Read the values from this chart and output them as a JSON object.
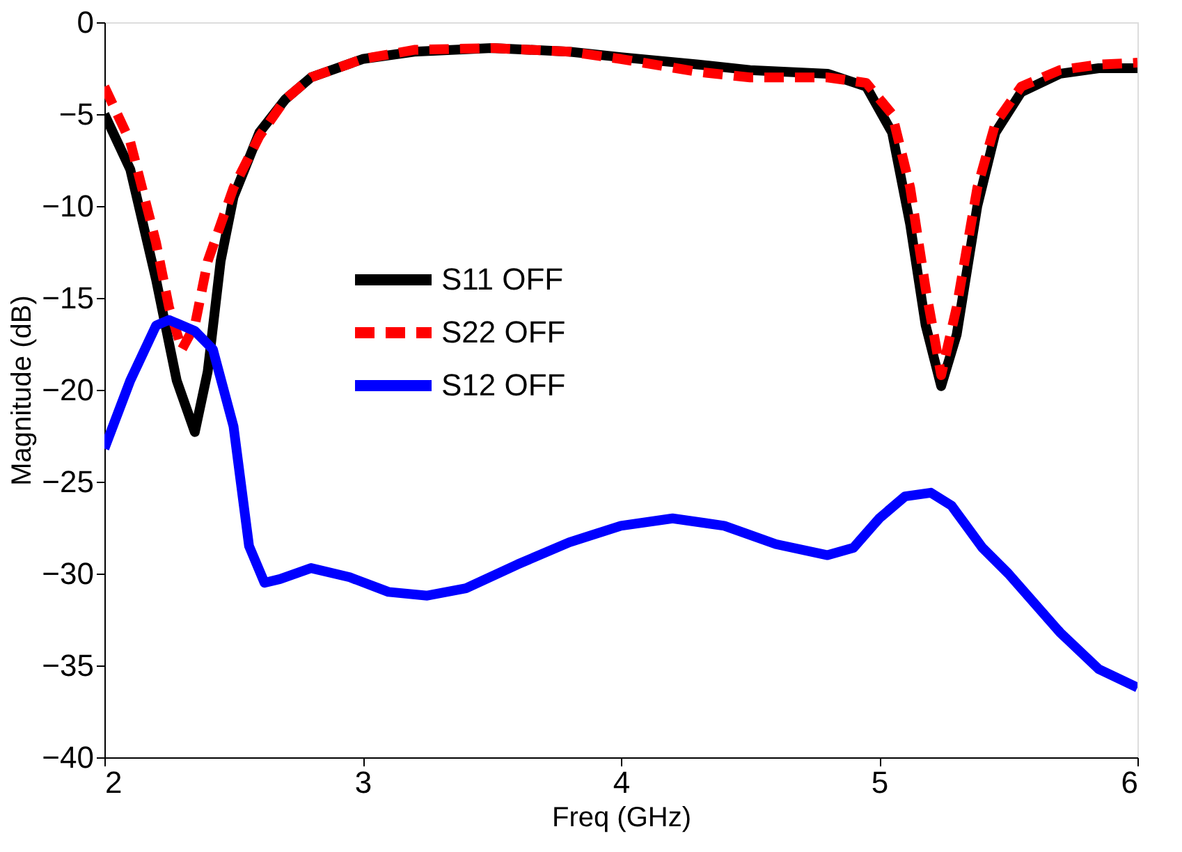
{
  "chart_data": {
    "type": "line",
    "xlabel": "Freq (GHz)",
    "ylabel": "Magnitude (dB)",
    "xlim": [
      2,
      6
    ],
    "xticks": [
      2,
      3,
      4,
      5,
      6
    ],
    "ylim": [
      -40,
      0
    ],
    "yticks": [
      -40,
      -35,
      -30,
      -25,
      -20,
      -15,
      -10,
      -5,
      0
    ],
    "grid": false,
    "legend": "left",
    "marker": "none",
    "series": [
      {
        "name": "S11 OFF",
        "color": "#000000",
        "line_style": "solid",
        "x": [
          2.0,
          2.1,
          2.2,
          2.28,
          2.35,
          2.4,
          2.45,
          2.5,
          2.6,
          2.7,
          2.8,
          3.0,
          3.2,
          3.5,
          3.8,
          4.0,
          4.3,
          4.5,
          4.8,
          4.95,
          5.05,
          5.12,
          5.18,
          5.24,
          5.3,
          5.38,
          5.45,
          5.55,
          5.7,
          5.85,
          6.0
        ],
        "values": [
          -5,
          -8,
          -14,
          -19.5,
          -22.3,
          -19,
          -13,
          -9.5,
          -6,
          -4.2,
          -3,
          -2,
          -1.6,
          -1.4,
          -1.6,
          -1.9,
          -2.3,
          -2.6,
          -2.8,
          -3.5,
          -6,
          -11,
          -16.5,
          -19.8,
          -17,
          -10,
          -6,
          -3.8,
          -2.8,
          -2.5,
          -2.5
        ]
      },
      {
        "name": "S22 OFF",
        "color": "#ff0000",
        "line_style": "dashed",
        "x": [
          2.0,
          2.1,
          2.2,
          2.25,
          2.3,
          2.35,
          2.4,
          2.5,
          2.6,
          2.7,
          2.8,
          3.0,
          3.2,
          3.5,
          3.8,
          4.0,
          4.3,
          4.5,
          4.8,
          4.95,
          5.05,
          5.12,
          5.18,
          5.24,
          5.3,
          5.38,
          5.45,
          5.55,
          5.7,
          5.85,
          6.0
        ],
        "values": [
          -3.5,
          -6.5,
          -12,
          -15.5,
          -17.8,
          -16.5,
          -13,
          -9,
          -6.2,
          -4.2,
          -3,
          -2,
          -1.5,
          -1.4,
          -1.6,
          -2,
          -2.7,
          -3,
          -3,
          -3.3,
          -5,
          -9,
          -14.5,
          -19.2,
          -15.5,
          -9,
          -5.5,
          -3.5,
          -2.6,
          -2.3,
          -2.2
        ]
      },
      {
        "name": "S12 OFF",
        "color": "#0000ff",
        "line_style": "solid",
        "x": [
          2.0,
          2.1,
          2.2,
          2.25,
          2.35,
          2.42,
          2.5,
          2.56,
          2.62,
          2.68,
          2.8,
          2.95,
          3.1,
          3.25,
          3.4,
          3.6,
          3.8,
          4.0,
          4.2,
          4.4,
          4.6,
          4.8,
          4.9,
          5.0,
          5.1,
          5.2,
          5.28,
          5.4,
          5.5,
          5.7,
          5.85,
          6.0
        ],
        "values": [
          -23.2,
          -19.5,
          -16.5,
          -16.2,
          -16.8,
          -17.8,
          -22,
          -28.5,
          -30.5,
          -30.3,
          -29.7,
          -30.2,
          -31,
          -31.2,
          -30.8,
          -29.5,
          -28.3,
          -27.4,
          -27,
          -27.4,
          -28.4,
          -29,
          -28.6,
          -27,
          -25.8,
          -25.6,
          -26.3,
          -28.6,
          -30,
          -33.2,
          -35.2,
          -36.2
        ]
      }
    ]
  }
}
